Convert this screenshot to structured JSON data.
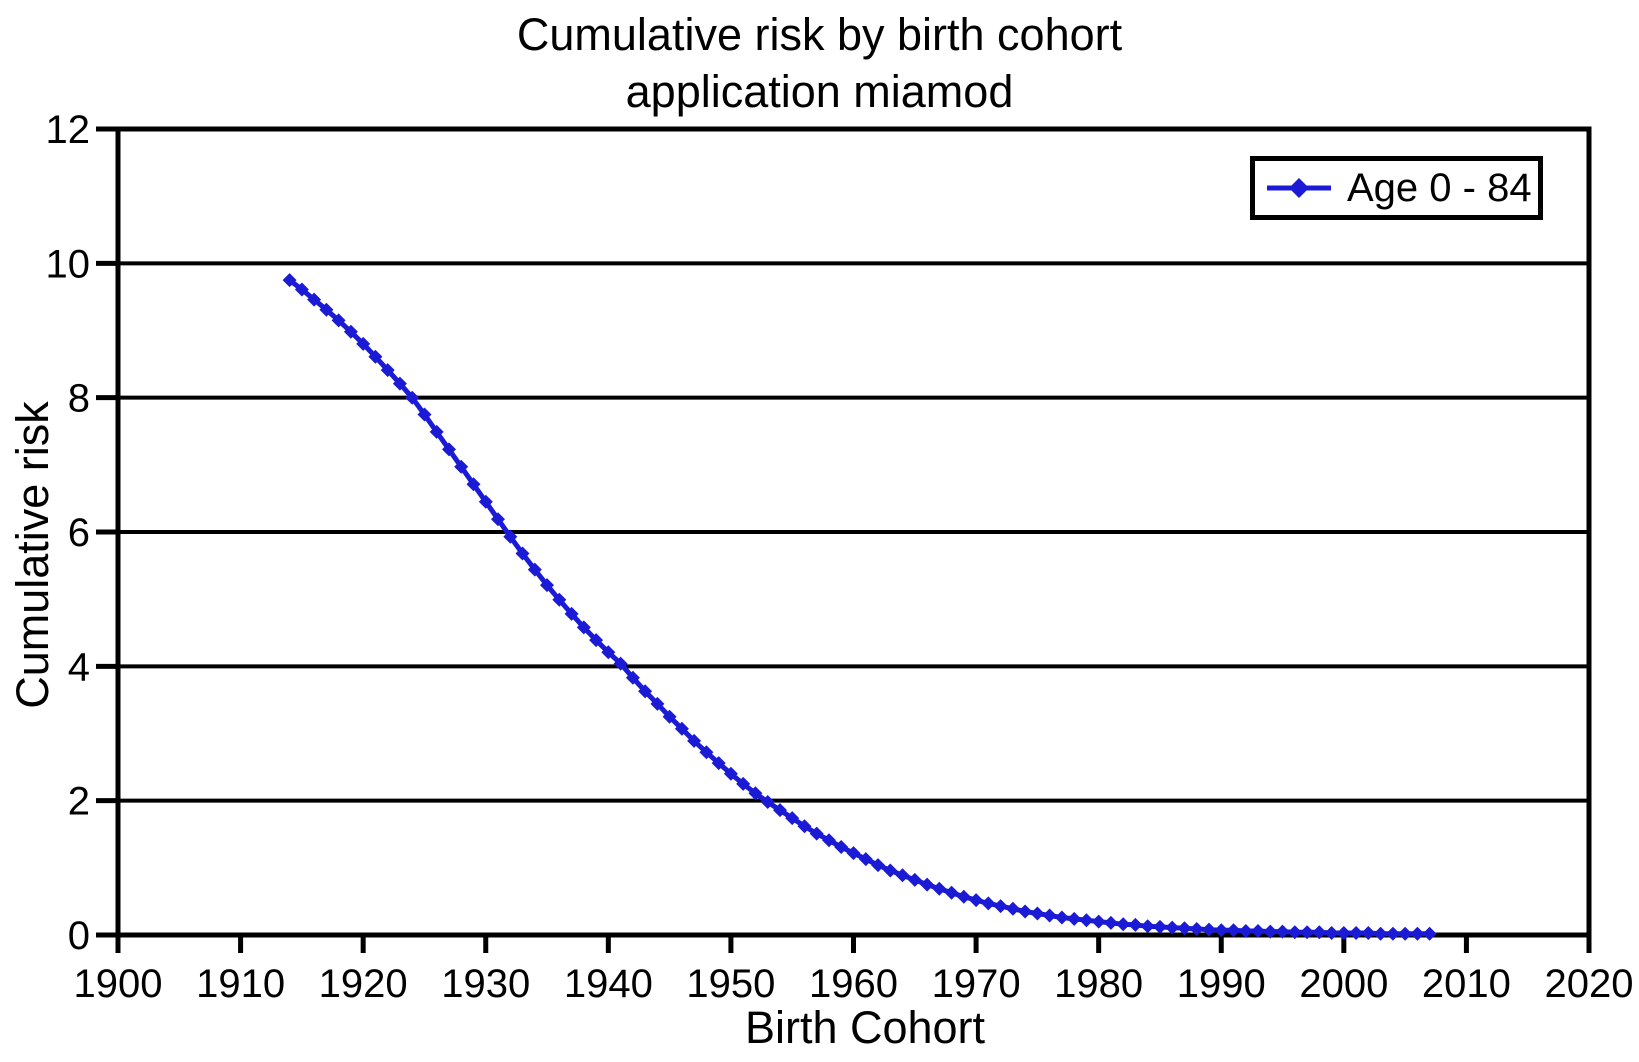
{
  "chart_data": {
    "type": "line",
    "title": "Cumulative risk by birth cohort",
    "subtitle": "application miamod",
    "xlabel": "Birth Cohort",
    "ylabel": "Cumulative risk",
    "xlim": [
      1900,
      2020
    ],
    "ylim": [
      0,
      12
    ],
    "x_ticks": [
      1900,
      1910,
      1920,
      1930,
      1940,
      1950,
      1960,
      1970,
      1980,
      1990,
      2000,
      2010,
      2020
    ],
    "y_ticks": [
      0,
      2,
      4,
      6,
      8,
      10,
      12
    ],
    "grid": "horizontal",
    "legend_position": "top-right",
    "series": [
      {
        "name": "Age 0 - 84",
        "marker": "diamond",
        "color": "#1b1bd6",
        "x": [
          1914,
          1915,
          1916,
          1917,
          1918,
          1919,
          1920,
          1921,
          1922,
          1923,
          1924,
          1925,
          1926,
          1927,
          1928,
          1929,
          1930,
          1931,
          1932,
          1933,
          1934,
          1935,
          1936,
          1937,
          1938,
          1939,
          1940,
          1941,
          1942,
          1943,
          1944,
          1945,
          1946,
          1947,
          1948,
          1949,
          1950,
          1951,
          1952,
          1953,
          1954,
          1955,
          1956,
          1957,
          1958,
          1959,
          1960,
          1961,
          1962,
          1963,
          1964,
          1965,
          1966,
          1967,
          1968,
          1969,
          1970,
          1971,
          1972,
          1973,
          1974,
          1975,
          1976,
          1977,
          1978,
          1979,
          1980,
          1981,
          1982,
          1983,
          1984,
          1985,
          1986,
          1987,
          1988,
          1989,
          1990,
          1991,
          1992,
          1993,
          1994,
          1995,
          1996,
          1997,
          1998,
          1999,
          2000,
          2001,
          2002,
          2003,
          2004,
          2005,
          2006,
          2007
        ],
        "y": [
          9.75,
          9.61,
          9.46,
          9.31,
          9.15,
          8.98,
          8.8,
          8.61,
          8.41,
          8.21,
          8.0,
          7.75,
          7.49,
          7.23,
          6.97,
          6.71,
          6.45,
          6.19,
          5.93,
          5.68,
          5.44,
          5.21,
          4.99,
          4.78,
          4.58,
          4.39,
          4.21,
          4.04,
          3.83,
          3.63,
          3.44,
          3.25,
          3.07,
          2.89,
          2.72,
          2.56,
          2.4,
          2.25,
          2.11,
          1.98,
          1.86,
          1.74,
          1.62,
          1.51,
          1.41,
          1.31,
          1.22,
          1.13,
          1.04,
          0.96,
          0.89,
          0.82,
          0.75,
          0.69,
          0.63,
          0.57,
          0.52,
          0.47,
          0.43,
          0.39,
          0.35,
          0.32,
          0.29,
          0.26,
          0.24,
          0.22,
          0.2,
          0.18,
          0.16,
          0.15,
          0.13,
          0.12,
          0.11,
          0.1,
          0.09,
          0.08,
          0.07,
          0.07,
          0.06,
          0.06,
          0.05,
          0.05,
          0.04,
          0.04,
          0.04,
          0.03,
          0.03,
          0.03,
          0.03,
          0.02,
          0.02,
          0.02,
          0.02,
          0.02
        ]
      }
    ]
  }
}
